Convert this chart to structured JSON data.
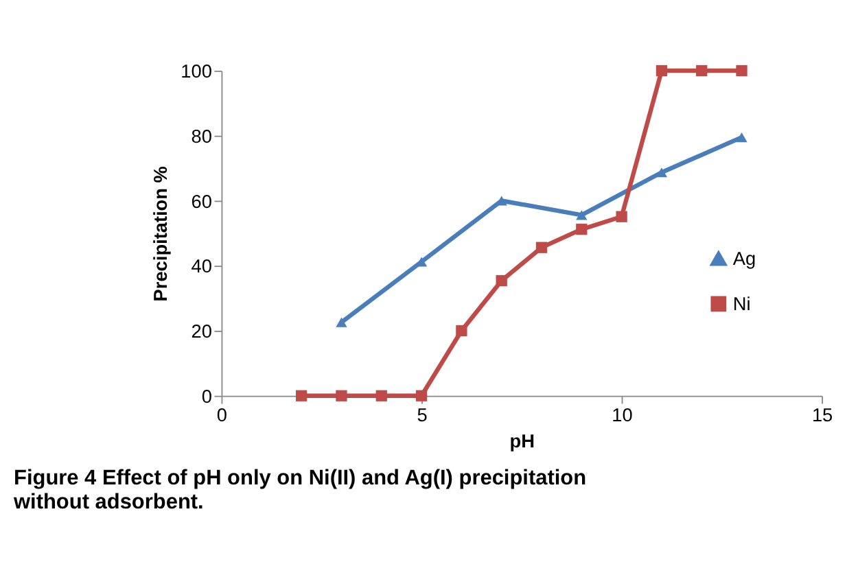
{
  "chart_data": {
    "type": "line",
    "xlabel": "pH",
    "ylabel": "Precipitation %",
    "xlim": [
      0,
      15
    ],
    "xticks": [
      0,
      5,
      10,
      15
    ],
    "ylim": [
      0,
      100
    ],
    "yticks": [
      0,
      20,
      40,
      60,
      80,
      100
    ],
    "grid": false,
    "legend": "right",
    "series": [
      {
        "name": "Ag",
        "color": "#4a7ebb",
        "marker": "triangle",
        "x": [
          3,
          5,
          7,
          9,
          11,
          13
        ],
        "values": [
          22.6,
          41.2,
          60,
          55.6,
          68.7,
          79.5
        ]
      },
      {
        "name": "Ni",
        "color": "#be4b48",
        "marker": "square",
        "x": [
          2,
          3,
          4,
          5,
          6,
          7,
          8,
          9,
          10,
          11,
          12,
          13
        ],
        "values": [
          0,
          0,
          0,
          0,
          20,
          35.4,
          45.6,
          51.2,
          55.1,
          100,
          100,
          100
        ]
      }
    ],
    "annotations": [
      "Figure 4 Effect of pH only on Ni(II) and Ag(I) precipitation without adsorbent."
    ]
  }
}
